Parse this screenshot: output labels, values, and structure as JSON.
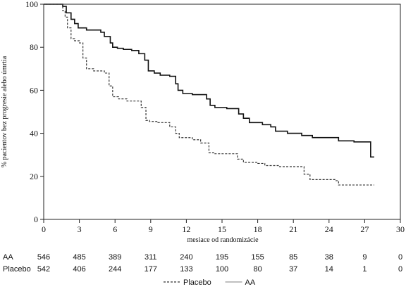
{
  "chart_data": {
    "type": "line",
    "title": "",
    "xlabel": "mesiace od randomizácie",
    "ylabel": "% pacientov bez progresie alebo úmrtia",
    "xlim": [
      0,
      30
    ],
    "ylim": [
      0,
      100
    ],
    "xticks": [
      "0",
      "3",
      "6",
      "9",
      "12",
      "15",
      "18",
      "21",
      "24",
      "27",
      "30"
    ],
    "yticks": [
      "0",
      "20",
      "40",
      "60",
      "80",
      "100"
    ],
    "grid": false,
    "legend_position": "bottom-center",
    "series": [
      {
        "name": "AA",
        "style": "solid",
        "color": "#111111",
        "x": [
          0,
          1.6,
          1.9,
          2.3,
          2.6,
          2.9,
          3.6,
          4.8,
          5.1,
          5.6,
          5.8,
          6.2,
          6.7,
          7.4,
          8.0,
          8.5,
          8.8,
          9.3,
          9.8,
          10.6,
          11.1,
          11.3,
          11.7,
          12.5,
          13.7,
          14.0,
          14.4,
          15.4,
          16.4,
          16.8,
          17.3,
          18.4,
          19.1,
          19.5,
          20.5,
          21.7,
          22.6,
          24.8,
          26.1,
          27.5,
          27.5,
          27.8
        ],
        "y": [
          100,
          99,
          96,
          93,
          91,
          89,
          88,
          87,
          85,
          82,
          80,
          79.5,
          79,
          78.5,
          77,
          74,
          69,
          68,
          67,
          66.5,
          63,
          60,
          58.5,
          58,
          56,
          53,
          52,
          51.5,
          49,
          47,
          45,
          44,
          43,
          41,
          40,
          39,
          38,
          36.5,
          36,
          35,
          29,
          29
        ]
      },
      {
        "name": "Placebo",
        "style": "dashed",
        "color": "#333333",
        "x": [
          0,
          1.6,
          1.8,
          2.0,
          2.3,
          2.6,
          3.0,
          3.3,
          3.6,
          4.2,
          5.1,
          5.5,
          5.8,
          6.3,
          7.0,
          8.2,
          8.6,
          8.9,
          9.6,
          10.6,
          11.1,
          11.4,
          12.5,
          13.2,
          13.9,
          14.4,
          16.3,
          16.8,
          18.0,
          18.6,
          19.8,
          21.9,
          22.4,
          24.5,
          24.8,
          27.8
        ],
        "y": [
          100,
          97,
          94,
          89,
          84,
          83,
          82,
          75,
          70,
          69,
          68,
          62,
          57,
          56,
          55,
          52,
          46,
          45.5,
          45,
          43,
          40,
          38,
          37,
          35.5,
          31,
          30.5,
          28,
          26.5,
          26,
          25,
          24.5,
          21,
          18.5,
          18,
          16,
          16
        ]
      }
    ],
    "risk_table": {
      "x": [
        0,
        3,
        6,
        9,
        12,
        15,
        18,
        21,
        24,
        27,
        30
      ],
      "rows": [
        {
          "label": "AA",
          "values": [
            "546",
            "485",
            "389",
            "311",
            "240",
            "195",
            "155",
            "85",
            "38",
            "9",
            "0"
          ]
        },
        {
          "label": "Placebo",
          "values": [
            "542",
            "406",
            "244",
            "177",
            "133",
            "100",
            "80",
            "37",
            "14",
            "1",
            "0"
          ]
        }
      ]
    },
    "legend": [
      {
        "label": "Placebo",
        "style": "dashed"
      },
      {
        "label": "AA",
        "style": "solid"
      }
    ]
  }
}
